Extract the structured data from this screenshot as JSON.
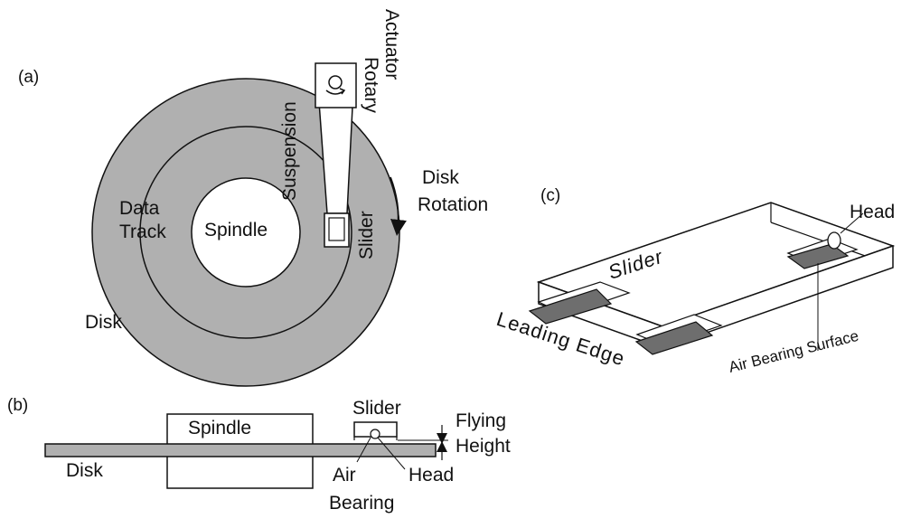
{
  "panel_a": {
    "tag": "(a)",
    "rotary": "Rotary",
    "actuator": "Actuator",
    "suspension": "Suspension",
    "disk": "Disk",
    "rotation": "Rotation",
    "data": "Data",
    "track": "Track",
    "spindle": "Spindle",
    "slider": "Slider",
    "disk_label": "Disk"
  },
  "panel_b": {
    "tag": "(b)",
    "spindle": "Spindle",
    "slider": "Slider",
    "flying": "Flying",
    "height": "Height",
    "disk": "Disk",
    "air": "Air",
    "bearing": "Bearing",
    "head": "Head"
  },
  "panel_c": {
    "tag": "(c)",
    "head": "Head",
    "slider": "Slider",
    "leading_edge": "Leading Edge",
    "air_bearing_surface": "Air Bearing Surface"
  },
  "colors": {
    "disk_fill": "#b0b0b0",
    "pad_fill": "#6e6e6e",
    "line": "#111111"
  }
}
